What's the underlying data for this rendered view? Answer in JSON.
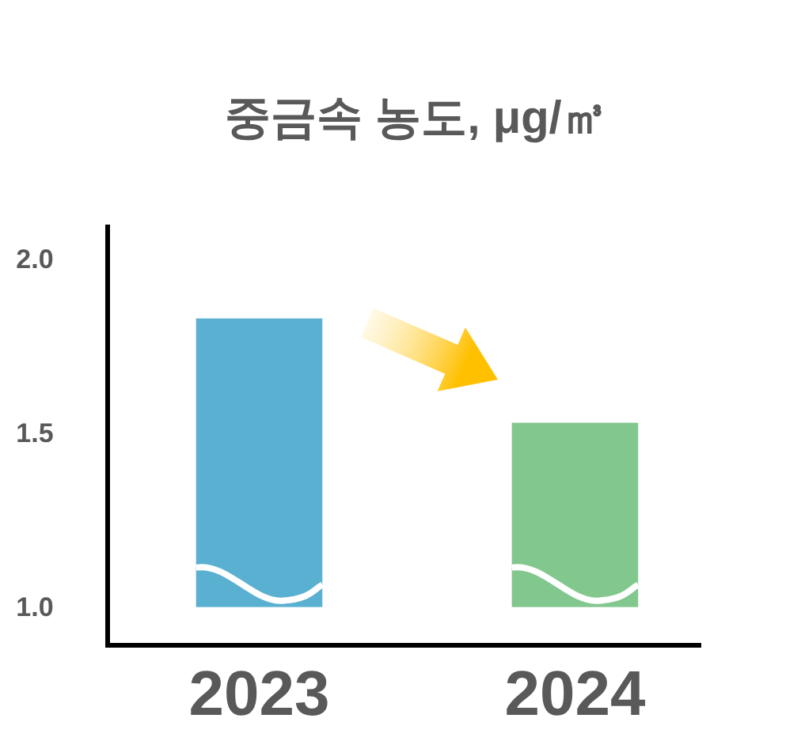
{
  "chart_data": {
    "type": "bar",
    "title": "중금속 농도, μg/㎥",
    "categories": [
      "2023",
      "2024"
    ],
    "base": [
      1.0,
      1.0
    ],
    "values": [
      0.83,
      0.53
    ],
    "colors": [
      "#5ab0d0",
      "#81c78e"
    ],
    "ylim": [
      0.89,
      2.1
    ],
    "yticks": [
      {
        "value": 1,
        "label": "1.0"
      },
      {
        "value": 1.5,
        "label": "1.5"
      },
      {
        "value": 2,
        "label": "2.0"
      }
    ]
  }
}
